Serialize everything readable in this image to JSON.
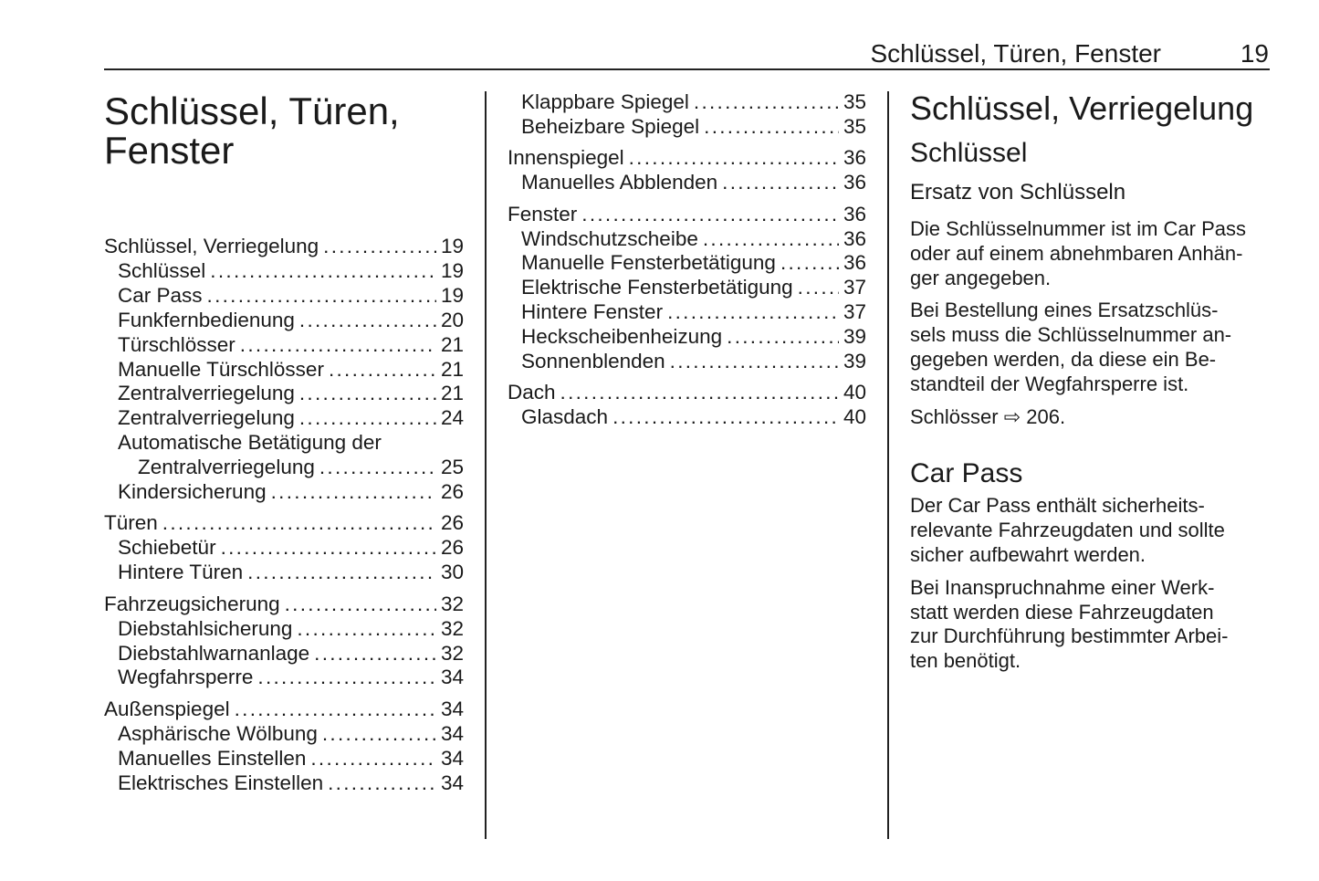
{
  "header": {
    "title": "Schlüssel, Türen, Fenster",
    "page": "19"
  },
  "chapter_title": [
    "Schlüssel, Türen,",
    "Fenster"
  ],
  "toc_left": [
    {
      "title": "Schlüssel, Verriegelung",
      "page": "19",
      "items": [
        {
          "label": "Schlüssel",
          "page": "19"
        },
        {
          "label": "Car Pass",
          "page": "19"
        },
        {
          "label": "Funkfernbedienung",
          "page": "20"
        },
        {
          "label": "Türschlösser",
          "page": "21"
        },
        {
          "label": "Manuelle Türschlösser",
          "page": "21"
        },
        {
          "label": "Zentralverriegelung",
          "page": "21"
        },
        {
          "label": "Zentralverriegelung",
          "page": "24"
        },
        {
          "label": "Automatische Betätigung der",
          "label_cont": "Zentralverriegelung",
          "page": "25"
        },
        {
          "label": "Kindersicherung",
          "page": "26"
        }
      ]
    },
    {
      "title": "Türen",
      "page": "26",
      "items": [
        {
          "label": "Schiebetür",
          "page": "26"
        },
        {
          "label": "Hintere Türen",
          "page": "30"
        }
      ]
    },
    {
      "title": "Fahrzeugsicherung",
      "page": "32",
      "items": [
        {
          "label": "Diebstahlsicherung",
          "page": "32"
        },
        {
          "label": "Diebstahlwarnanlage",
          "page": "32"
        },
        {
          "label": "Wegfahrsperre",
          "page": "34"
        }
      ]
    },
    {
      "title": "Außenspiegel",
      "page": "34",
      "items": [
        {
          "label": "Asphärische Wölbung",
          "page": "34"
        },
        {
          "label": "Manuelles Einstellen",
          "page": "34"
        },
        {
          "label": "Elektrisches Einstellen",
          "page": "34"
        }
      ]
    }
  ],
  "toc_mid": [
    {
      "title": "",
      "page": "",
      "items": [
        {
          "label": "Klappbare Spiegel",
          "page": "35"
        },
        {
          "label": "Beheizbare Spiegel",
          "page": "35"
        }
      ]
    },
    {
      "title": "Innenspiegel",
      "page": "36",
      "items": [
        {
          "label": "Manuelles Abblenden",
          "page": "36"
        }
      ]
    },
    {
      "title": "Fenster",
      "page": "36",
      "items": [
        {
          "label": "Windschutzscheibe",
          "page": "36"
        },
        {
          "label": "Manuelle Fensterbetätigung",
          "page": "36"
        },
        {
          "label": "Elektrische Fensterbetätigung",
          "page": "37"
        },
        {
          "label": "Hintere Fenster",
          "page": "37"
        },
        {
          "label": "Heckscheibenheizung",
          "page": "39"
        },
        {
          "label": "Sonnenblenden",
          "page": "39"
        }
      ]
    },
    {
      "title": "Dach",
      "page": "40",
      "items": [
        {
          "label": "Glasdach",
          "page": "40"
        }
      ]
    }
  ],
  "right": {
    "h1": "Schlüssel, Verriegelung",
    "h2": "Schlüssel",
    "h3": "Ersatz von Schlüsseln",
    "p1": [
      "Die Schlüsselnummer ist im Car Pass",
      "oder auf einem abnehmbaren Anhän-",
      "ger angegeben."
    ],
    "p2": [
      "Bei Bestellung eines Ersatzschlüs-",
      "sels muss die Schlüsselnummer an-",
      "gegeben werden, da diese ein Be-",
      "standteil der Wegfahrsperre ist."
    ],
    "ref_text": "Schlösser",
    "ref_icon": "hollow-right-arrow",
    "ref_page": "206.",
    "h2b": "Car Pass",
    "p3": [
      "Der Car Pass enthält sicherheits-",
      "relevante Fahrzeugdaten und sollte",
      "sicher aufbewahrt werden."
    ],
    "p4": [
      "Bei Inanspruchnahme einer Werk-",
      "statt werden diese Fahrzeugdaten",
      "zur Durchführung bestimmter Arbei-",
      "ten benötigt."
    ]
  }
}
